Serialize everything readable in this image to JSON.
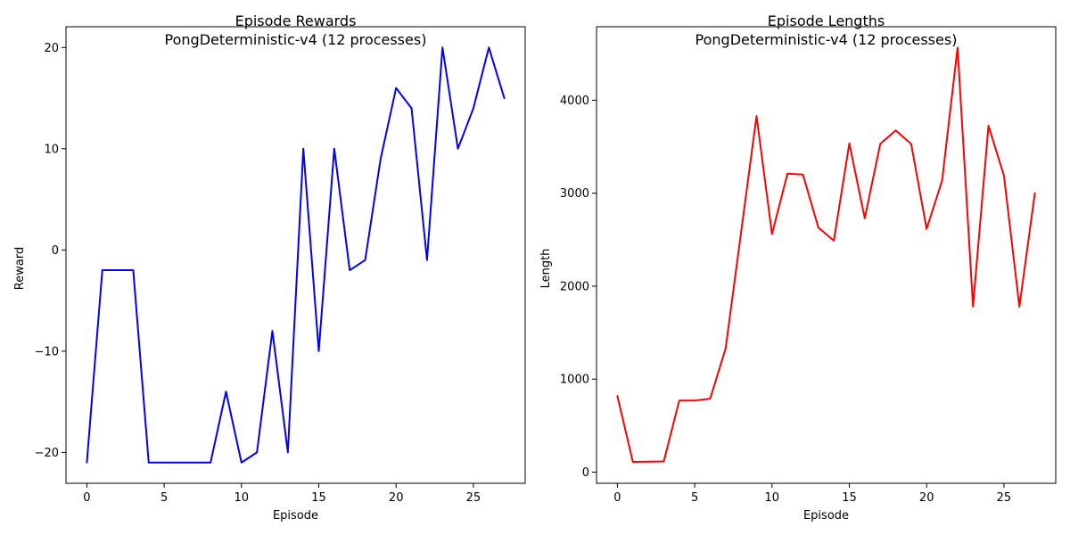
{
  "chart_data": [
    {
      "type": "line",
      "title": "Episode Rewards",
      "subtitle": "PongDeterministic-v4 (12 processes)",
      "xlabel": "Episode",
      "ylabel": "Reward",
      "xlim": [
        -1.35,
        28.35
      ],
      "ylim": [
        -23.05,
        22.05
      ],
      "xticks": [
        0,
        5,
        10,
        15,
        20,
        25
      ],
      "yticks": [
        -20,
        -10,
        0,
        10,
        20
      ],
      "grid": false,
      "series": [
        {
          "color": "#0000ff",
          "x": [
            0,
            1,
            2,
            3,
            4,
            5,
            6,
            7,
            8,
            9,
            10,
            11,
            12,
            13,
            14,
            15,
            16,
            17,
            18,
            19,
            20,
            21,
            22,
            23,
            24,
            25,
            26,
            27
          ],
          "y": [
            -21,
            -2,
            -2,
            -2,
            -21,
            -21,
            -21,
            -21,
            -21,
            -14,
            -21,
            -20,
            -8,
            -20,
            10,
            -10,
            10,
            -2,
            -1,
            9,
            16,
            14,
            -1,
            20,
            10,
            14,
            20,
            15
          ]
        }
      ]
    },
    {
      "type": "line",
      "title": "Episode Lengths",
      "subtitle": "PongDeterministic-v4 (12 processes)",
      "xlabel": "Episode",
      "ylabel": "Length",
      "xlim": [
        -1.35,
        28.35
      ],
      "ylim": [
        -120,
        4790
      ],
      "xticks": [
        0,
        5,
        10,
        15,
        20,
        25
      ],
      "yticks": [
        0,
        1000,
        2000,
        3000,
        4000
      ],
      "grid": false,
      "series": [
        {
          "color": "#ff0000",
          "x": [
            0,
            1,
            2,
            3,
            4,
            5,
            6,
            7,
            8,
            9,
            10,
            11,
            12,
            13,
            14,
            15,
            16,
            17,
            18,
            19,
            20,
            21,
            22,
            23,
            24,
            25,
            26,
            27
          ],
          "y": [
            820,
            110,
            112,
            115,
            770,
            770,
            790,
            1330,
            2580,
            3830,
            2560,
            3210,
            3200,
            2630,
            2490,
            3535,
            2730,
            3530,
            3675,
            3530,
            2615,
            3135,
            4565,
            1780,
            3725,
            3190,
            1780,
            3000
          ]
        }
      ]
    }
  ]
}
